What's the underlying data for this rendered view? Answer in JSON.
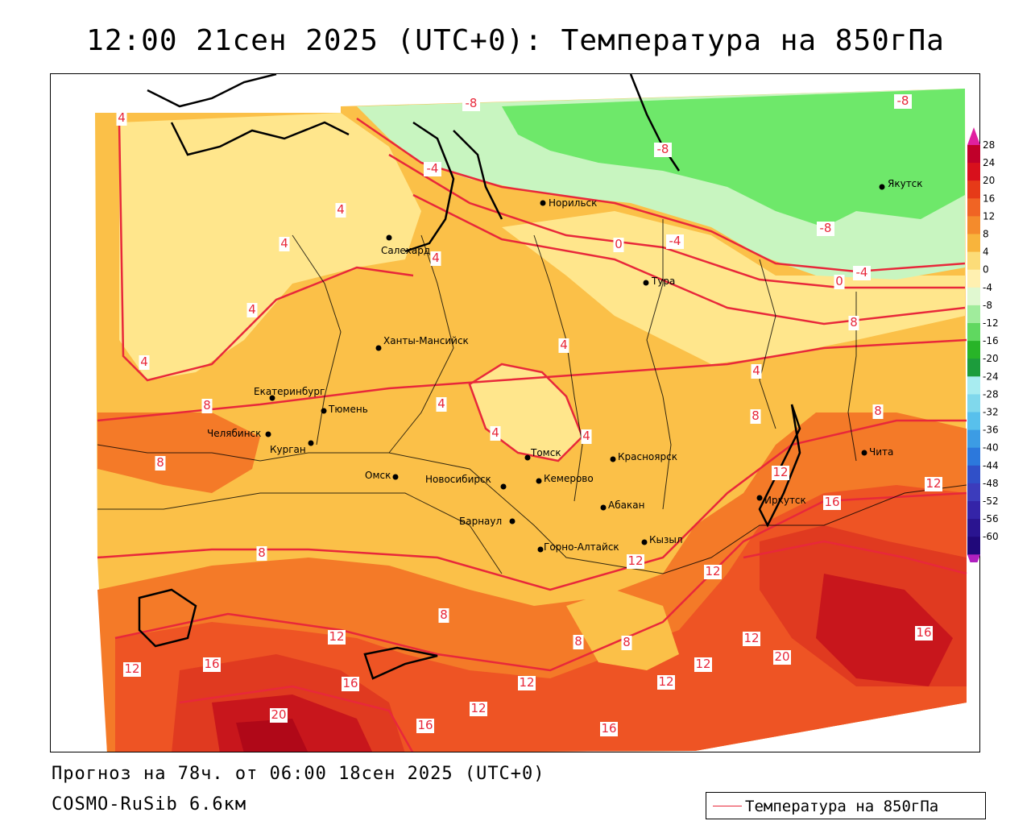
{
  "header": {
    "title": "12:00 21сен 2025 (UTC+0): Температура на 850гПа"
  },
  "footer": {
    "forecast_line": "Прогноз на 78ч. от 06:00 18сен 2025 (UTC+0)",
    "model_line": "COSMO-RuSib 6.6км"
  },
  "legend": {
    "label": "Температура на 850гПа",
    "line_color": "#e8283a"
  },
  "colorbar": {
    "ticks": [
      "28",
      "24",
      "20",
      "16",
      "12",
      "8",
      "4",
      "0",
      "-4",
      "-8",
      "-12",
      "-16",
      "-20",
      "-24",
      "-28",
      "-32",
      "-36",
      "-40",
      "-44",
      "-48",
      "-52",
      "-56",
      "-60"
    ],
    "colors": [
      "#c0002a",
      "#d8101c",
      "#e63a18",
      "#f06424",
      "#f48b2c",
      "#f8b43c",
      "#fcdc78",
      "#fff0b0",
      "#e0f8d0",
      "#a0ec9c",
      "#60d860",
      "#28b428",
      "#1c9c3c",
      "#a8ecf0",
      "#80d8ec",
      "#58c0ec",
      "#3c9ce4",
      "#2c78dc",
      "#3050c8",
      "#3c3cbc",
      "#3424a8",
      "#2a1490",
      "#20087a"
    ],
    "top_color": "#e020a0",
    "bottom_color": "#b020c0"
  },
  "map": {
    "cities": [
      {
        "name": "Норильск"
      },
      {
        "name": "Якутск"
      },
      {
        "name": "Салехард"
      },
      {
        "name": "Тура"
      },
      {
        "name": "Ханты-Мансийск"
      },
      {
        "name": "Екатеринбург"
      },
      {
        "name": "Тюмень"
      },
      {
        "name": "Челябинск"
      },
      {
        "name": "Курган"
      },
      {
        "name": "Омск"
      },
      {
        "name": "Новосибирск"
      },
      {
        "name": "Томск"
      },
      {
        "name": "Кемерово"
      },
      {
        "name": "Красноярск"
      },
      {
        "name": "Абакан"
      },
      {
        "name": "Барнаул"
      },
      {
        "name": "Горно-Алтайск"
      },
      {
        "name": "Кызыл"
      },
      {
        "name": "Иркутск"
      },
      {
        "name": "Чита"
      }
    ],
    "contour_labels": [
      "-8",
      "-8",
      "-8",
      "-8",
      "-4",
      "-4",
      "-4",
      "0",
      "0",
      "4",
      "4",
      "4",
      "4",
      "4",
      "4",
      "4",
      "4",
      "4",
      "4",
      "4",
      "8",
      "8",
      "8",
      "8",
      "8",
      "8",
      "8",
      "8",
      "8",
      "12",
      "12",
      "12",
      "12",
      "12",
      "12",
      "12",
      "12",
      "12",
      "12",
      "12",
      "16",
      "16",
      "16",
      "16",
      "16",
      "16",
      "20",
      "20"
    ],
    "zone_colors": {
      "cold_green": "#6ee86a",
      "light_green": "#c8f5c0",
      "pale_yellow": "#ffe68c",
      "yellow_orange": "#fbc048",
      "orange": "#f8a030",
      "dark_orange": "#f47a28",
      "red_orange": "#ee5424",
      "red": "#e03a20",
      "dark_red": "#c8161c",
      "deep_red": "#b00818"
    }
  }
}
